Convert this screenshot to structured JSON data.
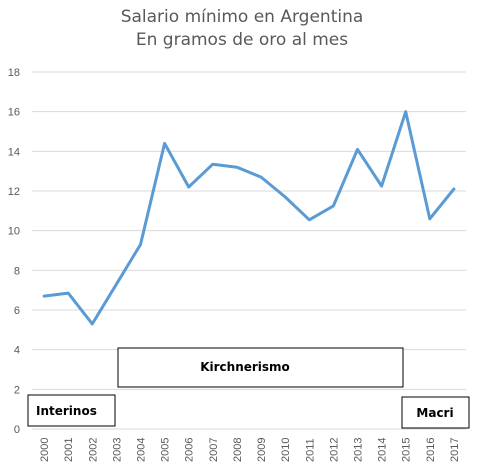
{
  "chart_data": {
    "type": "line",
    "title": "Salario mínimo en Argentina",
    "subtitle": "En gramos de oro al mes",
    "xlabel": "",
    "ylabel": "",
    "ylim": [
      0,
      18
    ],
    "y_ticks": [
      "0",
      "2",
      "4",
      "6",
      "8",
      "10",
      "12",
      "14",
      "16",
      "18"
    ],
    "grid": true,
    "legend": "none",
    "categories": [
      "2000",
      "2001",
      "2002",
      "2003",
      "2004",
      "2005",
      "2006",
      "2007",
      "2008",
      "2009",
      "2010",
      "2011",
      "2012",
      "2013",
      "2014",
      "2015",
      "2016",
      "2017"
    ],
    "series": [
      {
        "values": [
          6.7,
          6.85,
          5.3,
          7.3,
          9.3,
          14.4,
          12.2,
          13.35,
          13.2,
          12.7,
          11.7,
          10.55,
          11.25,
          14.1,
          12.25,
          16.0,
          10.6,
          12.1
        ],
        "color": "#5b9bd5"
      }
    ],
    "annotations": [
      {
        "label": "Interinos",
        "from": "2000",
        "to": "2003"
      },
      {
        "label": "Kirchnerismo",
        "from": "2003",
        "to": "2015"
      },
      {
        "label": "Macri",
        "from": "2015",
        "to": "2017"
      }
    ]
  }
}
